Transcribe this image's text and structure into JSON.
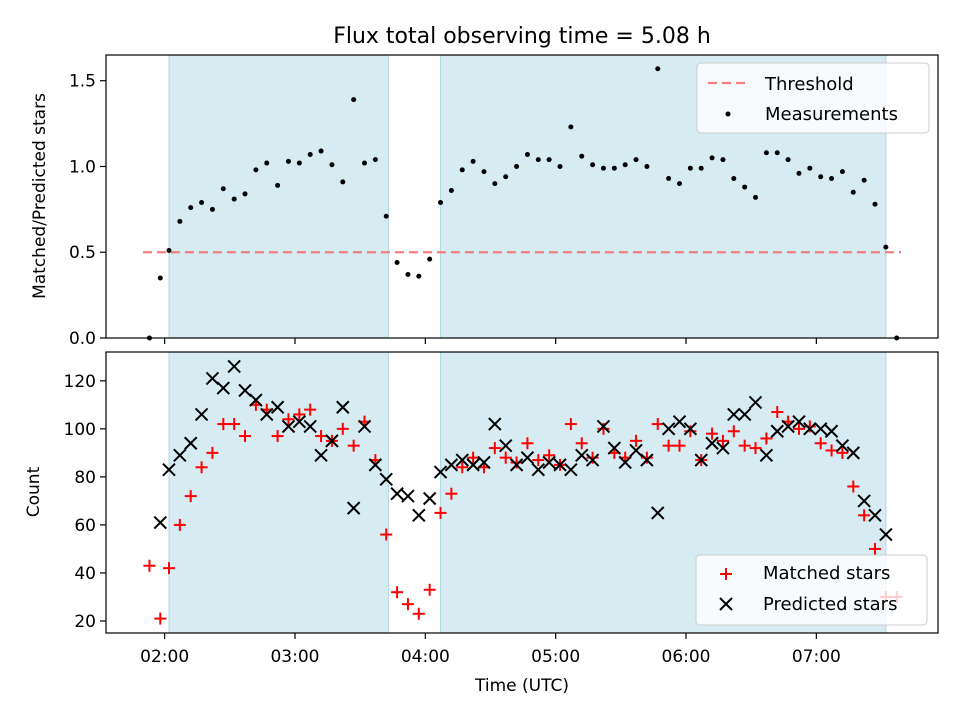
{
  "chart_data": [
    {
      "type": "scatter",
      "title": "Flux total observing time = 5.08 h",
      "xlabel": "",
      "ylabel": "Matched/Predicted stars",
      "ylim": [
        0,
        1.65
      ],
      "xlim": [
        "01:33",
        "07:56"
      ],
      "yticks": [
        0.0,
        0.5,
        1.0,
        1.5
      ],
      "ytick_labels": [
        "0.0",
        "0.5",
        "1.0",
        "1.5"
      ],
      "shaded_intervals": [
        [
          "02:02",
          "03:43"
        ],
        [
          "04:07",
          "07:32"
        ]
      ],
      "threshold": {
        "name": "Threshold",
        "y": 0.5,
        "x_range": [
          "01:50",
          "07:39"
        ],
        "color": "#f08080"
      },
      "legend": {
        "position": "top-right",
        "entries": [
          "Threshold",
          "Measurements"
        ]
      },
      "series": [
        {
          "name": "Measurements",
          "color": "#000000",
          "points": [
            [
              "01:53",
              0.0
            ],
            [
              "01:58",
              0.35
            ],
            [
              "02:02",
              0.51
            ],
            [
              "02:07",
              0.68
            ],
            [
              "02:12",
              0.76
            ],
            [
              "02:17",
              0.79
            ],
            [
              "02:22",
              0.75
            ],
            [
              "02:27",
              0.87
            ],
            [
              "02:32",
              0.81
            ],
            [
              "02:37",
              0.84
            ],
            [
              "02:42",
              0.98
            ],
            [
              "02:47",
              1.02
            ],
            [
              "02:52",
              0.89
            ],
            [
              "02:57",
              1.03
            ],
            [
              "03:02",
              1.02
            ],
            [
              "03:07",
              1.07
            ],
            [
              "03:12",
              1.09
            ],
            [
              "03:17",
              1.01
            ],
            [
              "03:22",
              0.91
            ],
            [
              "03:27",
              1.39
            ],
            [
              "03:32",
              1.02
            ],
            [
              "03:37",
              1.04
            ],
            [
              "03:42",
              0.71
            ],
            [
              "03:47",
              0.44
            ],
            [
              "03:52",
              0.37
            ],
            [
              "03:57",
              0.36
            ],
            [
              "04:02",
              0.46
            ],
            [
              "04:07",
              0.79
            ],
            [
              "04:12",
              0.86
            ],
            [
              "04:17",
              0.98
            ],
            [
              "04:22",
              1.03
            ],
            [
              "04:27",
              0.97
            ],
            [
              "04:32",
              0.9
            ],
            [
              "04:37",
              0.94
            ],
            [
              "04:42",
              1.0
            ],
            [
              "04:47",
              1.07
            ],
            [
              "04:52",
              1.04
            ],
            [
              "04:57",
              1.04
            ],
            [
              "05:02",
              1.0
            ],
            [
              "05:07",
              1.23
            ],
            [
              "05:12",
              1.06
            ],
            [
              "05:17",
              1.01
            ],
            [
              "05:22",
              0.99
            ],
            [
              "05:27",
              0.99
            ],
            [
              "05:32",
              1.01
            ],
            [
              "05:37",
              1.04
            ],
            [
              "05:42",
              1.0
            ],
            [
              "05:47",
              1.57
            ],
            [
              "05:52",
              0.93
            ],
            [
              "05:57",
              0.9
            ],
            [
              "06:02",
              0.99
            ],
            [
              "06:07",
              0.99
            ],
            [
              "06:12",
              1.05
            ],
            [
              "06:17",
              1.04
            ],
            [
              "06:22",
              0.93
            ],
            [
              "06:27",
              0.88
            ],
            [
              "06:32",
              0.82
            ],
            [
              "06:37",
              1.08
            ],
            [
              "06:42",
              1.08
            ],
            [
              "06:47",
              1.04
            ],
            [
              "06:52",
              0.96
            ],
            [
              "06:57",
              0.99
            ],
            [
              "07:02",
              0.94
            ],
            [
              "07:07",
              0.93
            ],
            [
              "07:12",
              0.97
            ],
            [
              "07:17",
              0.85
            ],
            [
              "07:22",
              0.92
            ],
            [
              "07:27",
              0.78
            ],
            [
              "07:32",
              0.53
            ],
            [
              "07:37",
              0.0
            ]
          ]
        }
      ]
    },
    {
      "type": "scatter",
      "title": "",
      "xlabel": "Time (UTC)",
      "ylabel": "Count",
      "ylim": [
        15,
        132
      ],
      "xlim": [
        "01:33",
        "07:56"
      ],
      "xticks": [
        "02:00",
        "03:00",
        "04:00",
        "05:00",
        "06:00",
        "07:00"
      ],
      "yticks": [
        20,
        40,
        60,
        80,
        100,
        120
      ],
      "ytick_labels": [
        "20",
        "40",
        "60",
        "80",
        "100",
        "120"
      ],
      "shaded_intervals": [
        [
          "02:02",
          "03:43"
        ],
        [
          "04:07",
          "07:32"
        ]
      ],
      "legend": {
        "position": "bottom-right",
        "entries": [
          "Matched stars",
          "Predicted stars"
        ]
      },
      "series": [
        {
          "name": "Matched stars",
          "marker": "plus",
          "color": "#ff0000",
          "points": [
            [
              "01:53",
              43
            ],
            [
              "01:58",
              21
            ],
            [
              "02:02",
              42
            ],
            [
              "02:07",
              60
            ],
            [
              "02:12",
              72
            ],
            [
              "02:17",
              84
            ],
            [
              "02:22",
              90
            ],
            [
              "02:27",
              102
            ],
            [
              "02:32",
              102
            ],
            [
              "02:37",
              97
            ],
            [
              "02:42",
              110
            ],
            [
              "02:47",
              108
            ],
            [
              "02:52",
              97
            ],
            [
              "02:57",
              104
            ],
            [
              "03:02",
              106
            ],
            [
              "03:07",
              108
            ],
            [
              "03:12",
              97
            ],
            [
              "03:17",
              95
            ],
            [
              "03:22",
              100
            ],
            [
              "03:27",
              93
            ],
            [
              "03:32",
              103
            ],
            [
              "03:37",
              87
            ],
            [
              "03:42",
              56
            ],
            [
              "03:47",
              32
            ],
            [
              "03:52",
              27
            ],
            [
              "03:57",
              23
            ],
            [
              "04:02",
              33
            ],
            [
              "04:07",
              65
            ],
            [
              "04:12",
              73
            ],
            [
              "04:17",
              84
            ],
            [
              "04:22",
              88
            ],
            [
              "04:27",
              84
            ],
            [
              "04:32",
              92
            ],
            [
              "04:37",
              88
            ],
            [
              "04:42",
              86
            ],
            [
              "04:47",
              94
            ],
            [
              "04:52",
              87
            ],
            [
              "04:57",
              89
            ],
            [
              "05:02",
              85
            ],
            [
              "05:07",
              102
            ],
            [
              "05:12",
              94
            ],
            [
              "05:17",
              88
            ],
            [
              "05:22",
              100
            ],
            [
              "05:27",
              90
            ],
            [
              "05:32",
              88
            ],
            [
              "05:37",
              95
            ],
            [
              "05:42",
              88
            ],
            [
              "05:47",
              102
            ],
            [
              "05:52",
              93
            ],
            [
              "05:57",
              93
            ],
            [
              "06:02",
              99
            ],
            [
              "06:07",
              87
            ],
            [
              "06:12",
              98
            ],
            [
              "06:17",
              95
            ],
            [
              "06:22",
              99
            ],
            [
              "06:27",
              93
            ],
            [
              "06:32",
              92
            ],
            [
              "06:37",
              96
            ],
            [
              "06:42",
              107
            ],
            [
              "06:47",
              103
            ],
            [
              "06:52",
              100
            ],
            [
              "06:57",
              101
            ],
            [
              "07:02",
              94
            ],
            [
              "07:07",
              91
            ],
            [
              "07:12",
              90
            ],
            [
              "07:17",
              76
            ],
            [
              "07:22",
              64
            ],
            [
              "07:27",
              50
            ],
            [
              "07:32",
              30
            ],
            [
              "07:37",
              30
            ]
          ]
        },
        {
          "name": "Predicted stars",
          "marker": "x",
          "color": "#000000",
          "points": [
            [
              "01:58",
              61
            ],
            [
              "02:02",
              83
            ],
            [
              "02:07",
              89
            ],
            [
              "02:12",
              94
            ],
            [
              "02:17",
              106
            ],
            [
              "02:22",
              121
            ],
            [
              "02:27",
              117
            ],
            [
              "02:32",
              126
            ],
            [
              "02:37",
              116
            ],
            [
              "02:42",
              112
            ],
            [
              "02:47",
              106
            ],
            [
              "02:52",
              109
            ],
            [
              "02:57",
              101
            ],
            [
              "03:02",
              103
            ],
            [
              "03:07",
              101
            ],
            [
              "03:12",
              89
            ],
            [
              "03:17",
              95
            ],
            [
              "03:22",
              109
            ],
            [
              "03:27",
              67
            ],
            [
              "03:32",
              101
            ],
            [
              "03:37",
              85
            ],
            [
              "03:42",
              79
            ],
            [
              "03:47",
              73
            ],
            [
              "03:52",
              72
            ],
            [
              "03:57",
              64
            ],
            [
              "04:02",
              71
            ],
            [
              "04:07",
              82
            ],
            [
              "04:12",
              85
            ],
            [
              "04:17",
              87
            ],
            [
              "04:22",
              85
            ],
            [
              "04:27",
              86
            ],
            [
              "04:32",
              102
            ],
            [
              "04:37",
              93
            ],
            [
              "04:42",
              85
            ],
            [
              "04:47",
              88
            ],
            [
              "04:52",
              83
            ],
            [
              "04:57",
              86
            ],
            [
              "05:02",
              85
            ],
            [
              "05:07",
              83
            ],
            [
              "05:12",
              89
            ],
            [
              "05:17",
              87
            ],
            [
              "05:22",
              101
            ],
            [
              "05:27",
              92
            ],
            [
              "05:32",
              86
            ],
            [
              "05:37",
              91
            ],
            [
              "05:42",
              87
            ],
            [
              "05:47",
              65
            ],
            [
              "05:52",
              100
            ],
            [
              "05:57",
              103
            ],
            [
              "06:02",
              100
            ],
            [
              "06:07",
              87
            ],
            [
              "06:12",
              94
            ],
            [
              "06:17",
              92
            ],
            [
              "06:22",
              106
            ],
            [
              "06:27",
              106
            ],
            [
              "06:32",
              111
            ],
            [
              "06:37",
              89
            ],
            [
              "06:42",
              99
            ],
            [
              "06:47",
              101
            ],
            [
              "06:52",
              103
            ],
            [
              "06:57",
              100
            ],
            [
              "07:02",
              100
            ],
            [
              "07:07",
              99
            ],
            [
              "07:12",
              93
            ],
            [
              "07:17",
              90
            ],
            [
              "07:22",
              70
            ],
            [
              "07:27",
              64
            ],
            [
              "07:32",
              56
            ]
          ]
        }
      ]
    }
  ]
}
